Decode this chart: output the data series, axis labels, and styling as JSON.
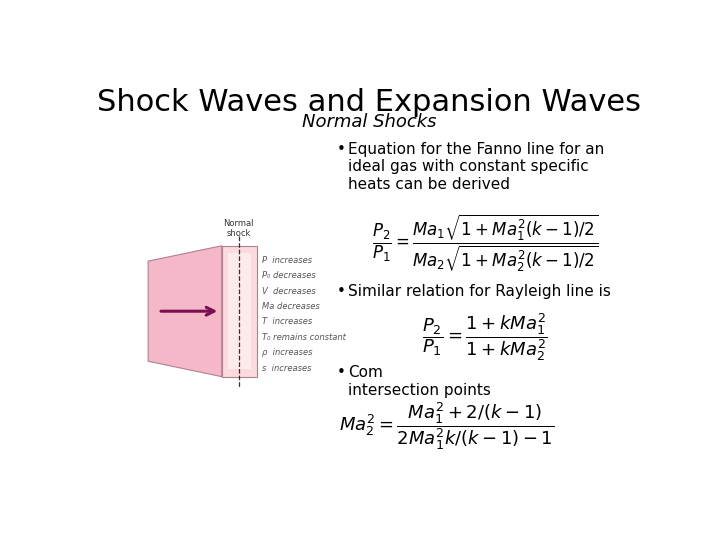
{
  "title": "Shock Waves and Expansion Waves",
  "subtitle": "Normal Shocks",
  "title_fontsize": 22,
  "subtitle_fontsize": 13,
  "bg_color": "#ffffff",
  "text_color": "#000000",
  "bullet1": "Equation for the Fanno line for an\nideal gas with constant specific\nheats can be derived",
  "bullet2": "Similar relation for Rayleigh line is",
  "bullet3": "Com\nintersection points",
  "eq1": "$\\dfrac{P_2}{P_1} = \\dfrac{Ma_1\\sqrt{1 + Ma_1^2(k-1)/2}}{Ma_2\\sqrt{1 + Ma_2^2(k-1)/2}}$",
  "eq2": "$\\dfrac{P_2}{P_1} = \\dfrac{1 + kMa_1^2}{1 + kMa_2^2}$",
  "eq3": "$Ma_2^2 = \\dfrac{Ma_1^2 + 2/(k-1)}{2Ma_1^2 k/(k-1) - 1}$",
  "shock_diagram_labels": [
    "P  increases",
    "P₀ decreases",
    "V  decreases",
    "Ma decreases",
    "T  increases",
    "T₀ remains constant",
    "ρ  increases",
    "s  increases"
  ],
  "arrow_color": "#7a1050",
  "shock_face_color": "#f5b8c8",
  "shock_edge_color": "#b08090"
}
